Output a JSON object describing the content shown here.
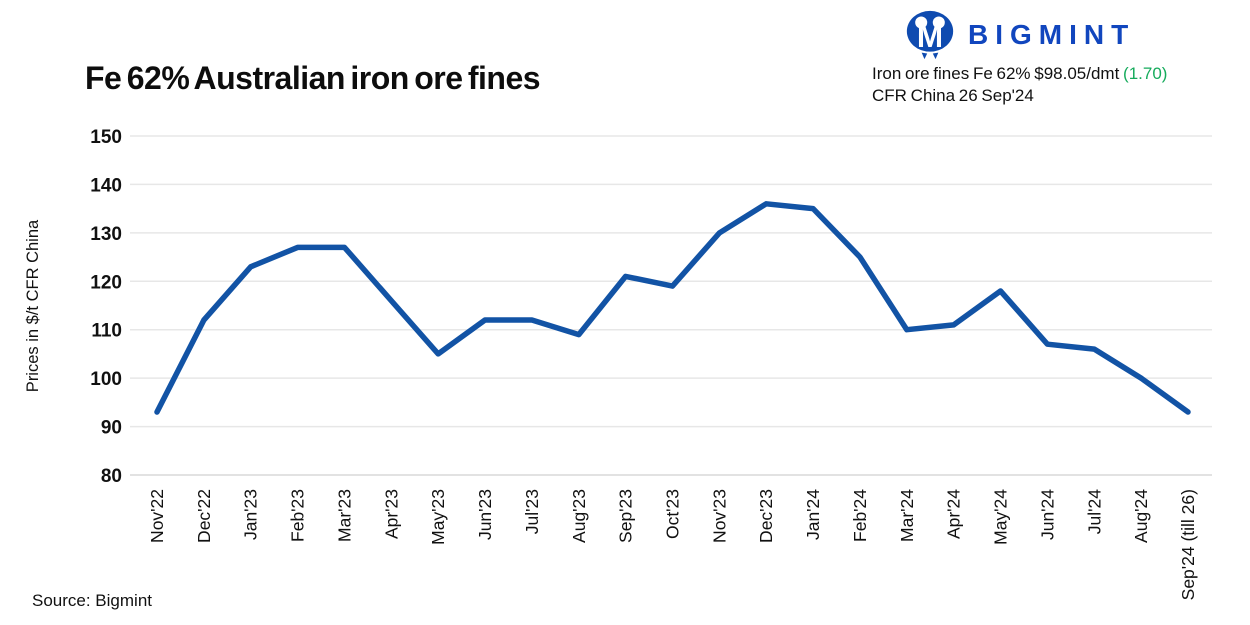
{
  "title": "Fe 62% Australian iron ore fines",
  "brand": {
    "name": "BIGMINT"
  },
  "ticker": {
    "line1_prefix": "Iron ore fines Fe 62% $98.05/dmt ",
    "line1_change": "(1.70)",
    "line2": "CFR China 26 Sep'24"
  },
  "source": "Source: Bigmint",
  "colors": {
    "line": "#1253A5",
    "logo_blue": "#1146BE",
    "logo_icon_blue": "#0F4BB0",
    "change_green": "#16AB5C",
    "grid": "#e7e7e7",
    "grid_bottom": "#d8d8d8",
    "text": "#111111"
  },
  "chart_data": {
    "type": "line",
    "title": "Fe 62% Australian iron ore fines",
    "xlabel": "",
    "ylabel": "Prices in $/t CFR China",
    "categories": [
      "Nov'22",
      "Dec'22",
      "Jan'23",
      "Feb'23",
      "Mar'23",
      "Apr'23",
      "May'23",
      "Jun'23",
      "Jul'23",
      "Aug'23",
      "Sep'23",
      "Oct'23",
      "Nov'23",
      "Dec'23",
      "Jan'24",
      "Feb'24",
      "Mar'24",
      "Apr'24",
      "May'24",
      "Jun'24",
      "Jul'24",
      "Aug'24",
      "Sep'24 (till 26)"
    ],
    "values": [
      93,
      112,
      123,
      127,
      127,
      116,
      105,
      112,
      112,
      109,
      121,
      119,
      130,
      136,
      135,
      125,
      110,
      111,
      118,
      107,
      106,
      100,
      93
    ],
    "ylim": [
      80,
      150
    ],
    "yticks": [
      80,
      90,
      100,
      110,
      120,
      130,
      140,
      150
    ],
    "grid": "horizontal",
    "legend": "none"
  }
}
